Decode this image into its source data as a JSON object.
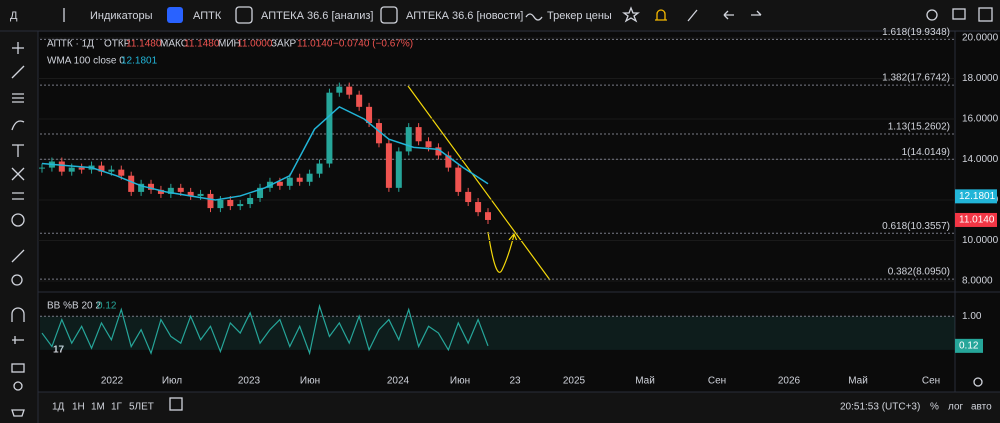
{
  "toolbar": {
    "interval": "Д",
    "indicators": "Индикаторы",
    "symbol": "АПТК",
    "analysis": "АПТЕКА 36.6 [анализ]",
    "news": "АПТЕКА 36.6 [новости]",
    "tracker": "Трекер цены"
  },
  "legend": {
    "symbol": "АПТК · 1Д",
    "open_label": "ОТКР",
    "open": "11.1480",
    "high_label": "МАКС",
    "high": "11.1480",
    "low_label": "МИН",
    "low": "11.0000",
    "close_label": "ЗАКР",
    "close": "11.0140",
    "change": "−0.0740 (−0.67%)",
    "wma_label": "WMA 100 close 0",
    "wma_value": "12.1801",
    "bb_label": "BB %B 20 2",
    "bb_value": "0.12"
  },
  "chart_data": {
    "type": "candlestick",
    "ylim": [
      8,
      20
    ],
    "yticks": [
      {
        "value": 8,
        "label": "8.0000"
      },
      {
        "value": 10,
        "label": "10.0000"
      },
      {
        "value": 12,
        "label": "12.0000"
      },
      {
        "value": 14,
        "label": "14.0000"
      },
      {
        "value": 16,
        "label": "16.0000"
      },
      {
        "value": 18,
        "label": "18.0000"
      },
      {
        "value": 20,
        "label": "20.0000"
      }
    ],
    "closes": [
      13.6,
      13.9,
      13.4,
      13.6,
      13.5,
      13.7,
      13.4,
      13.5,
      13.2,
      12.4,
      12.8,
      12.5,
      12.3,
      12.6,
      12.4,
      12.2,
      12.3,
      11.6,
      12.0,
      11.7,
      11.8,
      12.1,
      12.6,
      12.9,
      12.7,
      13.1,
      12.9,
      13.3,
      13.8,
      17.3,
      17.6,
      17.2,
      16.6,
      15.8,
      14.8,
      12.6,
      14.4,
      15.6,
      14.9,
      14.6,
      14.2,
      13.6,
      12.4,
      11.9,
      11.4,
      11.014
    ],
    "up_color": "#26a69a",
    "down_color": "#ef5350",
    "wma": {
      "color": "#22b5d8",
      "values": [
        13.8,
        13.7,
        13.6,
        13.2,
        12.7,
        12.4,
        12.2,
        12.0,
        12.2,
        12.6,
        13.2,
        15.5,
        16.6,
        16.0,
        15.0,
        14.6,
        14.5,
        13.6,
        12.8
      ]
    },
    "fib_levels": [
      {
        "label": "1.618(19.9348)",
        "price": 19.9348
      },
      {
        "label": "1.382(17.6742)",
        "price": 17.6742
      },
      {
        "label": "1.13(15.2602)",
        "price": 15.2602
      },
      {
        "label": "1(14.0149)",
        "price": 14.0149
      },
      {
        "label": "0.618(10.3557)",
        "price": 10.3557
      },
      {
        "label": "0.382(8.0950)",
        "price": 8.095
      }
    ],
    "price_tags": [
      {
        "value": 12.1801,
        "label": "12.1801",
        "color": "#22b5d8"
      },
      {
        "value": 11.014,
        "label": "11.0140",
        "color": "#f23645"
      }
    ],
    "oscillator": {
      "ylim": [
        -0.3,
        1.6
      ],
      "yticks": [
        {
          "value": 1,
          "label": "1.00"
        }
      ],
      "last": {
        "value": 0.12,
        "label": "0.12"
      },
      "color": "#26a69a",
      "values": [
        0.5,
        0.1,
        0.9,
        0.2,
        0.7,
        0.05,
        0.8,
        0.3,
        1.2,
        0.1,
        0.6,
        -0.1,
        0.9,
        0.4,
        0.2,
        1.0,
        0.3,
        0.7,
        -0.05,
        0.8,
        0.5,
        1.1,
        0.2,
        0.6,
        0.9,
        0.1,
        0.7,
        -0.1,
        1.3,
        0.4,
        0.8,
        0.2,
        1.0,
        0.0,
        0.6,
        0.9,
        0.3,
        1.2,
        0.1,
        0.7,
        0.5,
        0.0,
        0.8,
        0.2,
        0.9,
        0.12
      ]
    },
    "time_labels": [
      "2022",
      "Июл",
      "2023",
      "Июн",
      "2024",
      "Июн",
      "23",
      "2025",
      "Май",
      "Сен",
      "2026",
      "Май",
      "Сен"
    ]
  },
  "bottom_bar": {
    "ranges": [
      "1Д",
      "1Н",
      "1М",
      "1Г",
      "5ЛЕТ"
    ],
    "clock": "20:51:53 (UTC+3)",
    "percent": "%",
    "log": "лог",
    "auto": "авто"
  }
}
